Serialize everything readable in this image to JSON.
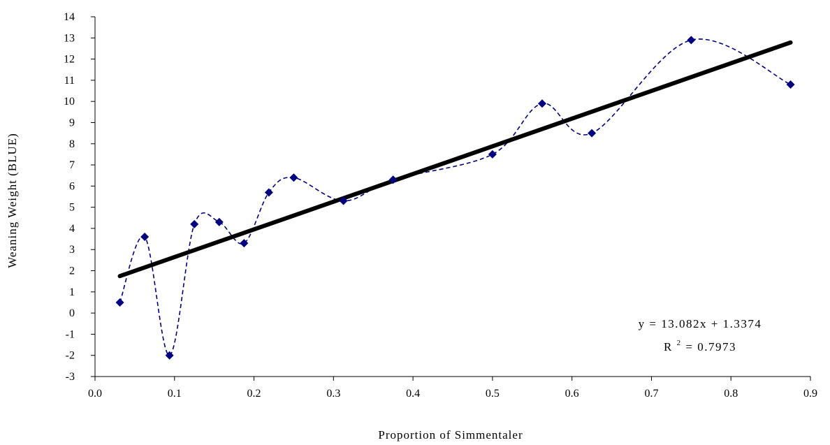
{
  "chart_data": {
    "type": "scatter",
    "title": "",
    "xlabel": "Proportion of Simmentaler",
    "ylabel": "Weaning Weight (BLUE)",
    "xlim": [
      0.0,
      0.9
    ],
    "ylim": [
      -3,
      14
    ],
    "x_ticks": [
      "0.0",
      "0.1",
      "0.2",
      "0.3",
      "0.4",
      "0.5",
      "0.6",
      "0.7",
      "0.8",
      "0.9"
    ],
    "y_ticks": [
      "-3",
      "-2",
      "-1",
      "0",
      "1",
      "2",
      "3",
      "4",
      "5",
      "6",
      "7",
      "8",
      "9",
      "10",
      "11",
      "12",
      "13",
      "14"
    ],
    "grid": false,
    "series": [
      {
        "marker": "diamond",
        "line": "dashed-smooth",
        "color": "#000080",
        "points": [
          {
            "x": 0.03125,
            "y": 0.5
          },
          {
            "x": 0.0625,
            "y": 3.6
          },
          {
            "x": 0.09375,
            "y": -2.0
          },
          {
            "x": 0.125,
            "y": 4.2
          },
          {
            "x": 0.15625,
            "y": 4.3
          },
          {
            "x": 0.1875,
            "y": 3.3
          },
          {
            "x": 0.21875,
            "y": 5.7
          },
          {
            "x": 0.25,
            "y": 6.4
          },
          {
            "x": 0.3125,
            "y": 5.3
          },
          {
            "x": 0.375,
            "y": 6.3
          },
          {
            "x": 0.5,
            "y": 7.5
          },
          {
            "x": 0.5625,
            "y": 9.9
          },
          {
            "x": 0.625,
            "y": 8.5
          },
          {
            "x": 0.75,
            "y": 12.9
          },
          {
            "x": 0.875,
            "y": 10.8
          }
        ]
      }
    ],
    "trendline": {
      "type": "linear",
      "slope": 13.082,
      "intercept": 1.3374,
      "color": "#000000",
      "x_range": [
        0.03125,
        0.875
      ]
    },
    "annotations": {
      "equation": "y = 13.082x + 1.3374",
      "r_squared_prefix": "R",
      "r_squared_exponent": "2",
      "r_squared_suffix": " = 0.7973"
    }
  }
}
